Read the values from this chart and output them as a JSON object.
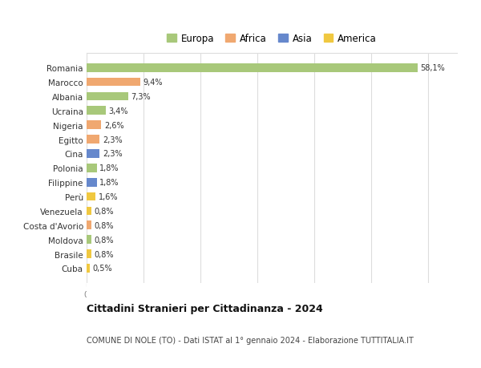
{
  "countries": [
    "Romania",
    "Marocco",
    "Albania",
    "Ucraina",
    "Nigeria",
    "Egitto",
    "Cina",
    "Polonia",
    "Filippine",
    "Perù",
    "Venezuela",
    "Costa d'Avorio",
    "Moldova",
    "Brasile",
    "Cuba"
  ],
  "values": [
    58.1,
    9.4,
    7.3,
    3.4,
    2.6,
    2.3,
    2.3,
    1.8,
    1.8,
    1.6,
    0.8,
    0.8,
    0.8,
    0.8,
    0.5
  ],
  "labels": [
    "58,1%",
    "9,4%",
    "7,3%",
    "3,4%",
    "2,6%",
    "2,3%",
    "2,3%",
    "1,8%",
    "1,8%",
    "1,6%",
    "0,8%",
    "0,8%",
    "0,8%",
    "0,8%",
    "0,5%"
  ],
  "continents": [
    "Europa",
    "Africa",
    "Europa",
    "Europa",
    "Africa",
    "Africa",
    "Asia",
    "Europa",
    "Asia",
    "America",
    "America",
    "Africa",
    "Europa",
    "America",
    "America"
  ],
  "continent_colors": {
    "Europa": "#a8c87a",
    "Africa": "#f0a870",
    "Asia": "#6688cc",
    "America": "#f0c840"
  },
  "legend_order": [
    "Europa",
    "Africa",
    "Asia",
    "America"
  ],
  "title": "Cittadini Stranieri per Cittadinanza - 2024",
  "subtitle": "COMUNE DI NOLE (TO) - Dati ISTAT al 1° gennaio 2024 - Elaborazione TUTTITALIA.IT",
  "xlim": [
    0,
    65
  ],
  "xticks": [
    0,
    10,
    20,
    30,
    40,
    50,
    60
  ],
  "bg_color": "#ffffff",
  "grid_color": "#dddddd",
  "bar_height": 0.6
}
